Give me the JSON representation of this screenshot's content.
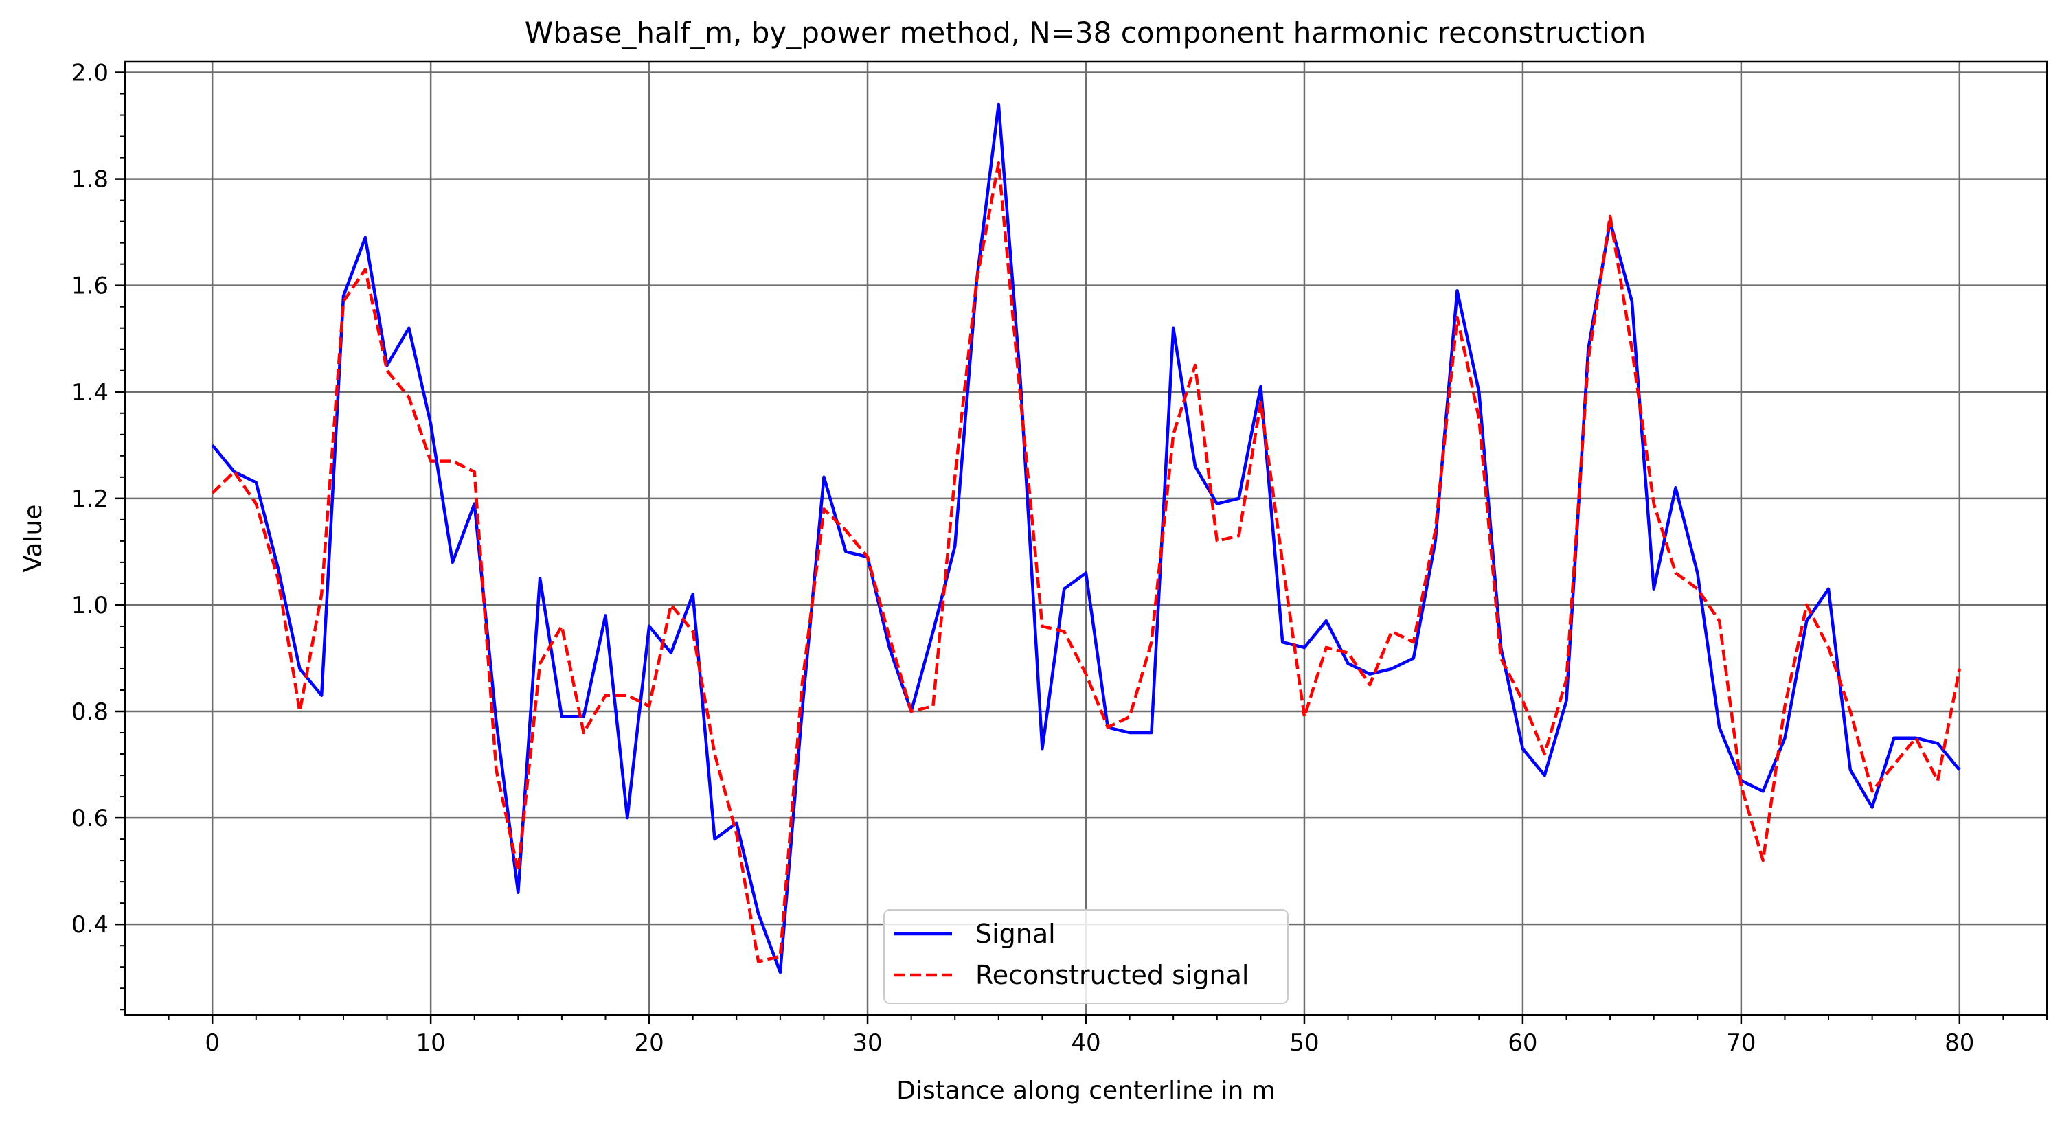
{
  "chart_data": {
    "type": "line",
    "title": "Wbase_half_m, by_power method, N=38 component harmonic reconstruction",
    "xlabel": "Distance along centerline in m",
    "ylabel": "Value",
    "xlim": [
      -4,
      84
    ],
    "ylim": [
      0.23,
      2.02
    ],
    "xticks": [
      0,
      10,
      20,
      30,
      40,
      50,
      60,
      70,
      80
    ],
    "yticks": [
      0.4,
      0.6,
      0.8,
      1.0,
      1.2,
      1.4,
      1.6,
      1.8,
      2.0
    ],
    "ytick_labels": [
      "0.4",
      "0.6",
      "0.8",
      "1.0",
      "1.2",
      "1.4",
      "1.6",
      "1.8",
      "2.0"
    ],
    "grid": true,
    "legend_position": "lower-center",
    "x": [
      0,
      1,
      2,
      3,
      4,
      5,
      6,
      7,
      8,
      9,
      10,
      11,
      12,
      13,
      14,
      15,
      16,
      17,
      18,
      19,
      20,
      21,
      22,
      23,
      24,
      25,
      26,
      27,
      28,
      29,
      30,
      31,
      32,
      33,
      34,
      35,
      36,
      37,
      38,
      39,
      40,
      41,
      42,
      43,
      44,
      45,
      46,
      47,
      48,
      49,
      50,
      51,
      52,
      53,
      54,
      55,
      56,
      57,
      58,
      59,
      60,
      61,
      62,
      63,
      64,
      65,
      66,
      67,
      68,
      69,
      70,
      71,
      72,
      73,
      74,
      75,
      76,
      77,
      78,
      79,
      80
    ],
    "series": [
      {
        "name": "Signal",
        "color": "#0000ff",
        "style": "solid",
        "values": [
          1.3,
          1.25,
          1.23,
          1.07,
          0.88,
          0.83,
          1.58,
          1.69,
          1.45,
          1.52,
          1.34,
          1.08,
          1.19,
          0.78,
          0.46,
          1.05,
          0.79,
          0.79,
          0.98,
          0.6,
          0.96,
          0.91,
          1.02,
          0.56,
          0.59,
          0.42,
          0.31,
          0.8,
          1.24,
          1.1,
          1.09,
          0.92,
          0.8,
          0.95,
          1.11,
          1.61,
          1.94,
          1.42,
          0.73,
          1.03,
          1.06,
          0.77,
          0.76,
          0.76,
          1.52,
          1.26,
          1.19,
          1.2,
          1.41,
          0.93,
          0.92,
          0.97,
          0.89,
          0.87,
          0.88,
          0.9,
          1.12,
          1.59,
          1.4,
          0.92,
          0.73,
          0.68,
          0.82,
          1.48,
          1.72,
          1.57,
          1.03,
          1.22,
          1.06,
          0.77,
          0.67,
          0.65,
          0.75,
          0.97,
          1.03,
          0.69,
          0.62,
          0.75,
          0.75,
          0.74,
          0.69
        ]
      },
      {
        "name": "Reconstructed signal",
        "color": "#ff0000",
        "style": "dashed",
        "values": [
          1.21,
          1.25,
          1.19,
          1.05,
          0.8,
          1.02,
          1.57,
          1.63,
          1.44,
          1.39,
          1.27,
          1.27,
          1.25,
          0.69,
          0.5,
          0.89,
          0.96,
          0.76,
          0.83,
          0.83,
          0.81,
          1.0,
          0.95,
          0.72,
          0.57,
          0.33,
          0.34,
          0.85,
          1.18,
          1.14,
          1.09,
          0.94,
          0.8,
          0.81,
          1.24,
          1.61,
          1.83,
          1.39,
          0.96,
          0.95,
          0.87,
          0.77,
          0.79,
          0.93,
          1.32,
          1.45,
          1.12,
          1.13,
          1.38,
          1.08,
          0.79,
          0.92,
          0.91,
          0.85,
          0.95,
          0.93,
          1.14,
          1.54,
          1.35,
          0.9,
          0.82,
          0.72,
          0.86,
          1.46,
          1.73,
          1.48,
          1.19,
          1.06,
          1.03,
          0.97,
          0.66,
          0.52,
          0.81,
          1.0,
          0.92,
          0.8,
          0.65,
          0.7,
          0.75,
          0.67,
          0.88
        ]
      }
    ]
  }
}
